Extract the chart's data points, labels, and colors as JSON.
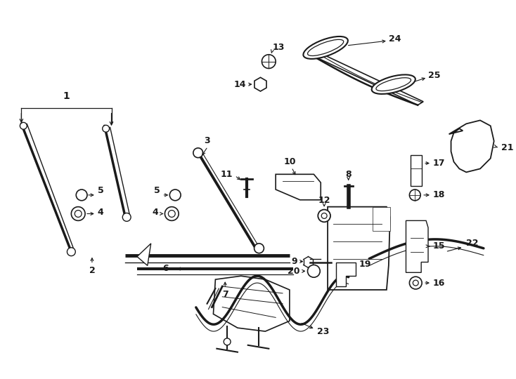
{
  "bg_color": "#ffffff",
  "line_color": "#1a1a1a",
  "figsize": [
    7.34,
    5.4
  ],
  "dpi": 100
}
